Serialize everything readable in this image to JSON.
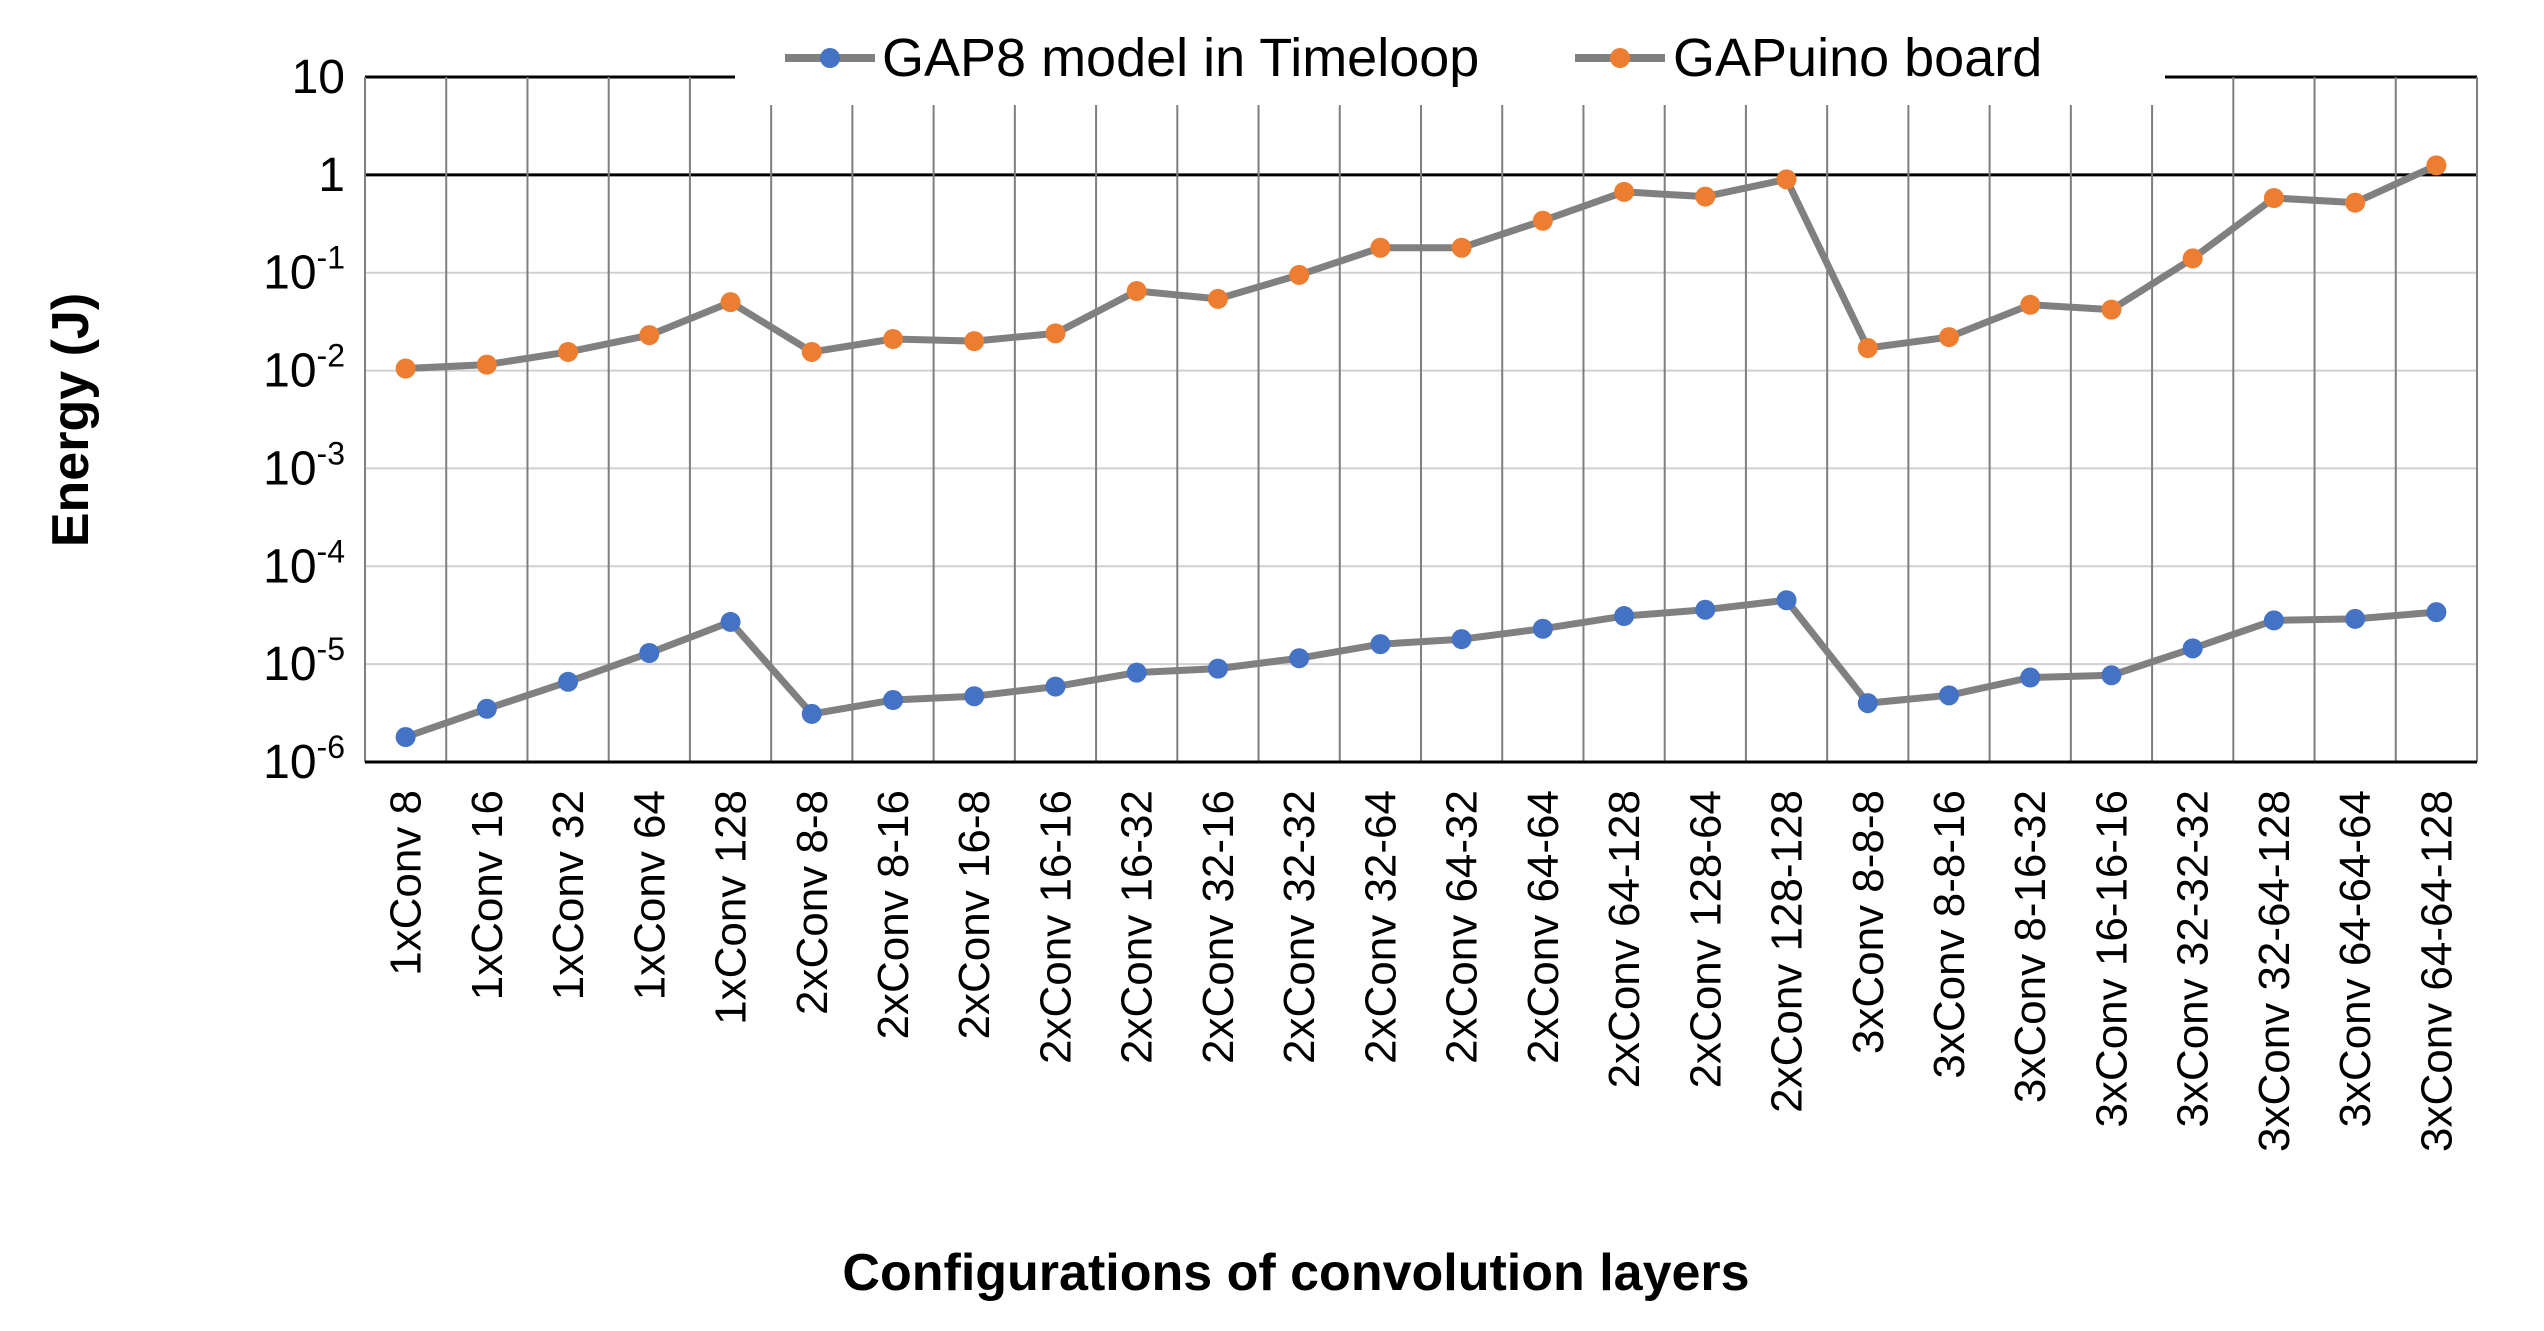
{
  "chart_data": {
    "type": "line",
    "title": "",
    "xlabel": "Configurations of convolution layers",
    "ylabel": "Energy (J)",
    "yscale": "log",
    "ylim": [
      1e-06,
      10
    ],
    "ytick_labels": [
      {
        "base": "10",
        "exp": "-6"
      },
      {
        "base": "10",
        "exp": "-5"
      },
      {
        "base": "10",
        "exp": "-4"
      },
      {
        "base": "10",
        "exp": "-3"
      },
      {
        "base": "10",
        "exp": "-2"
      },
      {
        "base": "10",
        "exp": "-1"
      },
      {
        "base": "1",
        "exp": ""
      },
      {
        "base": "10",
        "exp": ""
      }
    ],
    "grid": true,
    "legend_position": "top",
    "categories": [
      "1xConv 8",
      "1xConv 16",
      "1xConv 32",
      "1xConv 64",
      "1xConv 128",
      "2xConv 8-8",
      "2xConv 8-16",
      "2xConv 16-8",
      "2xConv 16-16",
      "2xConv 16-32",
      "2xConv 32-16",
      "2xConv 32-32",
      "2xConv 32-64",
      "2xConv 64-32",
      "2xConv 64-64",
      "2xConv 64-128",
      "2xConv 128-64",
      "2xConv 128-128",
      "3xConv 8-8-8",
      "3xConv 8-8-16",
      "3xConv 8-16-32",
      "3xConv 16-16-16",
      "3xConv 32-32-32",
      "3xConv 32-64-128",
      "3xConv 64-64-64",
      "3xConv 64-64-128"
    ],
    "series": [
      {
        "name": "GAP8 model in Timeloop",
        "color": "#4472C4",
        "line_color": "#808080",
        "values": [
          1.8e-06,
          3.5e-06,
          6.6e-06,
          1.3e-05,
          2.7e-05,
          3.1e-06,
          4.3e-06,
          4.7e-06,
          5.9e-06,
          8.2e-06,
          9e-06,
          1.15e-05,
          1.6e-05,
          1.8e-05,
          2.3e-05,
          3.1e-05,
          3.6e-05,
          4.5e-05,
          4e-06,
          4.8e-06,
          7.3e-06,
          7.7e-06,
          1.45e-05,
          2.8e-05,
          2.9e-05,
          3.4e-05
        ]
      },
      {
        "name": "GAPuino board",
        "color": "#ED7D31",
        "line_color": "#808080",
        "values": [
          0.0105,
          0.0115,
          0.0155,
          0.023,
          0.05,
          0.0155,
          0.021,
          0.02,
          0.024,
          0.065,
          0.054,
          0.095,
          0.18,
          0.18,
          0.34,
          0.67,
          0.6,
          0.9,
          0.017,
          0.022,
          0.047,
          0.042,
          0.14,
          0.58,
          0.52,
          1.25
        ]
      }
    ]
  }
}
